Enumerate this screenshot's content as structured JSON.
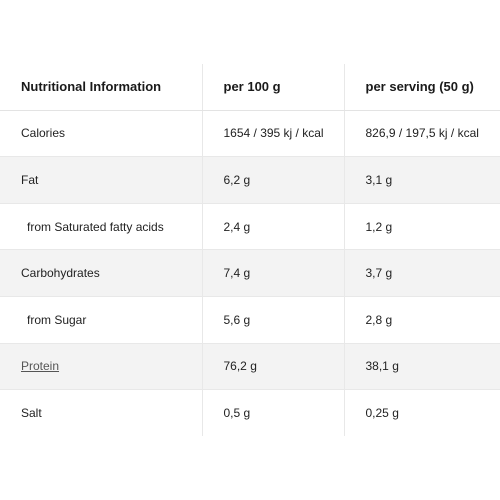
{
  "header": {
    "label": "Nutritional Information",
    "per100": "per 100 g",
    "perServing": "per serving (50 g)"
  },
  "rows": [
    {
      "name": "Calories",
      "per100": "1654 / 395 kj / kcal",
      "perServing": "826,9 / 197,5 kj / kcal"
    },
    {
      "name": "Fat",
      "per100": "6,2 g",
      "perServing": "3,1 g"
    },
    {
      "name": "from Saturated fatty acids",
      "per100": "2,4 g",
      "perServing": "1,2 g"
    },
    {
      "name": "Carbohydrates",
      "per100": "7,4 g",
      "perServing": "3,7 g"
    },
    {
      "name": "from Sugar",
      "per100": "5,6 g",
      "perServing": "2,8 g"
    },
    {
      "name": "Protein",
      "per100": "76,2 g",
      "perServing": "38,1 g"
    },
    {
      "name": "Salt",
      "per100": "0,5 g",
      "perServing": "0,25 g"
    }
  ],
  "colors": {
    "shade": "#f3f3f3",
    "border": "#e8e8e8"
  }
}
